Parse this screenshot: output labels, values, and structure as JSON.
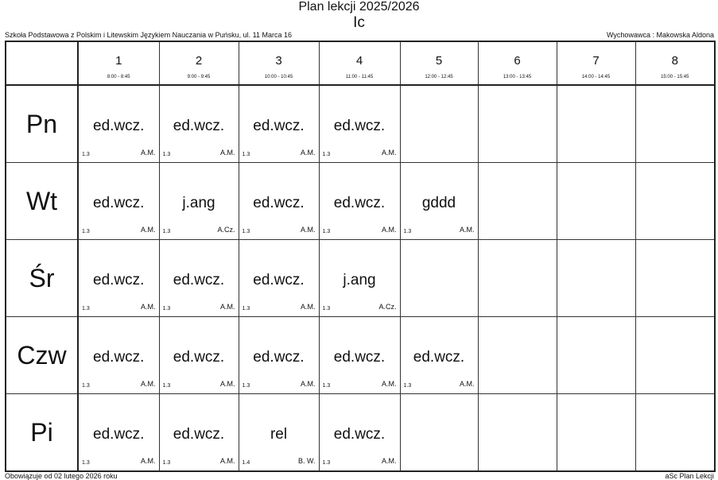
{
  "header": {
    "title": "Plan lekcji 2025/2026",
    "class_name": "Ic",
    "school": "Szkoła Podstawowa z Polskim i Litewskim Językiem Nauczania w Puńsku, ul. 11 Marca 16",
    "form_teacher": "Wychowawca : Makowska Aldona"
  },
  "footer": {
    "valid_from": "Obowiązuje od 02 lutego 2026 roku",
    "generator": "aSc Plan Lekcji"
  },
  "periods": [
    {
      "num": "1",
      "time": "8:00 - 8:45"
    },
    {
      "num": "2",
      "time": "9:00 - 9:45"
    },
    {
      "num": "3",
      "time": "10:00 - 10:45"
    },
    {
      "num": "4",
      "time": "11:00 - 11:45"
    },
    {
      "num": "5",
      "time": "12:00 - 12:45"
    },
    {
      "num": "6",
      "time": "13:00 - 13:45"
    },
    {
      "num": "7",
      "time": "14:00 - 14:45"
    },
    {
      "num": "8",
      "time": "15:00 - 15:45"
    }
  ],
  "days": [
    {
      "label": "Pn",
      "lessons": [
        {
          "subject": "ed.wcz.",
          "room": "1.3",
          "teacher": "A.M."
        },
        {
          "subject": "ed.wcz.",
          "room": "1.3",
          "teacher": "A.M."
        },
        {
          "subject": "ed.wcz.",
          "room": "1.3",
          "teacher": "A.M."
        },
        {
          "subject": "ed.wcz.",
          "room": "1.3",
          "teacher": "A.M."
        }
      ]
    },
    {
      "label": "Wt",
      "lessons": [
        {
          "subject": "ed.wcz.",
          "room": "1.3",
          "teacher": "A.M."
        },
        {
          "subject": "j.ang",
          "room": "1.3",
          "teacher": "A.Cz."
        },
        {
          "subject": "ed.wcz.",
          "room": "1.3",
          "teacher": "A.M."
        },
        {
          "subject": "ed.wcz.",
          "room": "1.3",
          "teacher": "A.M."
        },
        {
          "subject": "gddd",
          "room": "1.3",
          "teacher": "A.M."
        }
      ]
    },
    {
      "label": "Śr",
      "lessons": [
        {
          "subject": "ed.wcz.",
          "room": "1.3",
          "teacher": "A.M."
        },
        {
          "subject": "ed.wcz.",
          "room": "1.3",
          "teacher": "A.M."
        },
        {
          "subject": "ed.wcz.",
          "room": "1.3",
          "teacher": "A.M."
        },
        {
          "subject": "j.ang",
          "room": "1.3",
          "teacher": "A.Cz."
        }
      ]
    },
    {
      "label": "Czw",
      "lessons": [
        {
          "subject": "ed.wcz.",
          "room": "1.3",
          "teacher": "A.M."
        },
        {
          "subject": "ed.wcz.",
          "room": "1.3",
          "teacher": "A.M."
        },
        {
          "subject": "ed.wcz.",
          "room": "1.3",
          "teacher": "A.M."
        },
        {
          "subject": "ed.wcz.",
          "room": "1.3",
          "teacher": "A.M."
        },
        {
          "subject": "ed.wcz.",
          "room": "1.3",
          "teacher": "A.M."
        }
      ]
    },
    {
      "label": "Pi",
      "lessons": [
        {
          "subject": "ed.wcz.",
          "room": "1.3",
          "teacher": "A.M."
        },
        {
          "subject": "ed.wcz.",
          "room": "1.3",
          "teacher": "A.M."
        },
        {
          "subject": "rel",
          "room": "1.4",
          "teacher": "B. W."
        },
        {
          "subject": "ed.wcz.",
          "room": "1.3",
          "teacher": "A.M."
        }
      ]
    }
  ]
}
